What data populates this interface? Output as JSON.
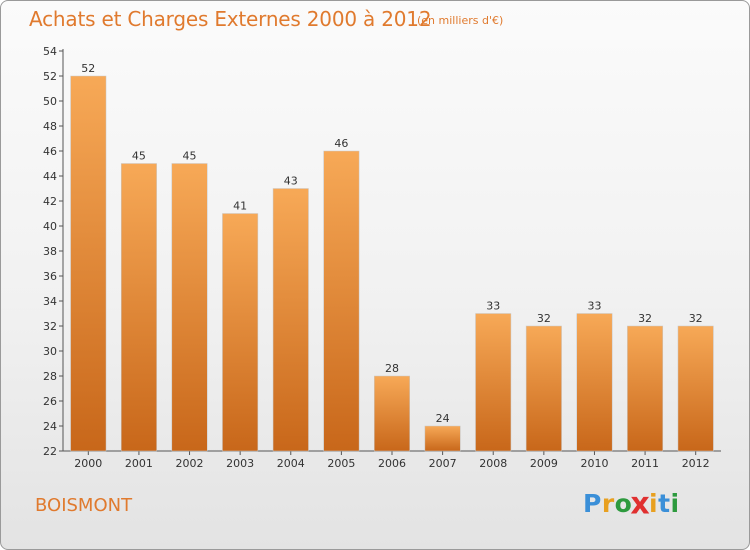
{
  "title": "Achats et Charges Externes 2000 à 2012",
  "subtitle": "(en milliers d'€)",
  "place_name": "BOISMONT",
  "logo": {
    "letters": [
      "P",
      "r",
      "o",
      "x",
      "i",
      "t",
      "i"
    ],
    "colors": [
      "#3a8fd8",
      "#e8a020",
      "#2d9a3e",
      "#e03030",
      "#e8a020",
      "#3a8fd8",
      "#2d9a3e"
    ]
  },
  "colors": {
    "title": "#e07a2e",
    "bar_top": "#f7a957",
    "bar_bottom": "#c8671a"
  },
  "chart_data": {
    "type": "bar",
    "categories": [
      "2000",
      "2001",
      "2002",
      "2003",
      "2004",
      "2005",
      "2006",
      "2007",
      "2008",
      "2009",
      "2010",
      "2011",
      "2012"
    ],
    "values": [
      52,
      45,
      45,
      41,
      43,
      46,
      28,
      24,
      33,
      32,
      33,
      32,
      32
    ],
    "title": "Achats et Charges Externes 2000 à 2012",
    "xlabel": "",
    "ylabel": "",
    "ylim": [
      22,
      54
    ],
    "yticks": [
      22,
      24,
      26,
      28,
      30,
      32,
      34,
      36,
      38,
      40,
      42,
      44,
      46,
      48,
      50,
      52,
      54
    ],
    "grid": false,
    "data_labels": true
  }
}
